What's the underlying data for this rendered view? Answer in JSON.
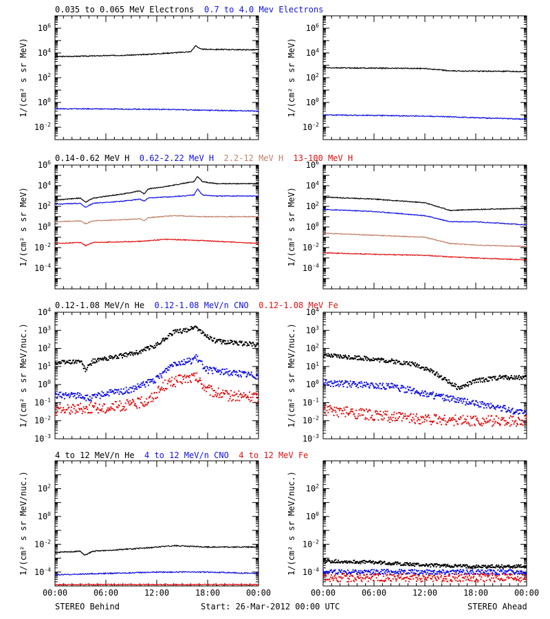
{
  "footer": {
    "left": "STEREO Behind",
    "center": "Start: 26-Mar-2012 00:00 UTC",
    "right": "STEREO Ahead"
  },
  "colors": {
    "black": "#000000",
    "blue": "#1010e0",
    "tan": "#c08068",
    "red": "#e01010"
  },
  "rows": [
    {
      "titles": [
        {
          "text": "0.035 to 0.065 MeV Electrons",
          "color": "black"
        },
        {
          "text": "0.7 to 4.0 Mev Electrons",
          "color": "blue"
        }
      ],
      "ylabel": "1/(cm² s sr MeV)",
      "ytick_exps": [
        -2,
        0,
        2,
        4,
        6
      ]
    },
    {
      "titles": [
        {
          "text": "0.14-0.62 MeV H",
          "color": "black"
        },
        {
          "text": "0.62-2.22 MeV H",
          "color": "blue"
        },
        {
          "text": "2.2-12 MeV H",
          "color": "tan"
        },
        {
          "text": "13-100 MeV H",
          "color": "red"
        }
      ],
      "ylabel": "1/(cm² s sr MeV)",
      "ytick_exps": [
        -4,
        -2,
        0,
        2,
        4,
        6
      ]
    },
    {
      "titles": [
        {
          "text": "0.12-1.08 MeV/n He",
          "color": "black"
        },
        {
          "text": "0.12-1.08 MeV/n CNO",
          "color": "blue"
        },
        {
          "text": "0.12-1.08 MeV Fe",
          "color": "red"
        }
      ],
      "ylabel": "1/(cm² s sr MeV/nuc.)",
      "ytick_exps": [
        -3,
        -2,
        -1,
        0,
        1,
        2,
        3,
        4
      ]
    },
    {
      "titles": [
        {
          "text": "4 to 12 MeV/n He",
          "color": "black"
        },
        {
          "text": "4 to 12 MeV/n CNO",
          "color": "blue"
        },
        {
          "text": "4 to 12 MeV Fe",
          "color": "red"
        }
      ],
      "ylabel": "1/(cm² s sr MeV/nuc.)",
      "ytick_exps": [
        -4,
        -2,
        0,
        2
      ]
    }
  ],
  "chart_data": [
    {
      "type": "line",
      "panel": "row1-behind",
      "x_ticks": [
        "00:00",
        "06:00",
        "12:00",
        "18:00",
        "00:00"
      ],
      "xlim": [
        0,
        24
      ],
      "yscale": "log",
      "ylim_exp": [
        -3,
        7
      ],
      "series": [
        {
          "color": "black",
          "points": [
            [
              0,
              3.7
            ],
            [
              4,
              3.75
            ],
            [
              10,
              3.85
            ],
            [
              16,
              4.1
            ],
            [
              16.6,
              4.6
            ],
            [
              17.2,
              4.3
            ],
            [
              24,
              4.25
            ]
          ]
        },
        {
          "color": "blue",
          "points": [
            [
              0,
              -0.5
            ],
            [
              12,
              -0.55
            ],
            [
              24,
              -0.7
            ]
          ]
        }
      ]
    },
    {
      "type": "line",
      "panel": "row1-ahead",
      "x_ticks": [
        "00:00",
        "06:00",
        "12:00",
        "18:00",
        "00:00"
      ],
      "xlim": [
        0,
        24
      ],
      "yscale": "log",
      "ylim_exp": [
        -3,
        7
      ],
      "series": [
        {
          "color": "black",
          "points": [
            [
              0,
              2.8
            ],
            [
              12,
              2.75
            ],
            [
              15,
              2.55
            ],
            [
              24,
              2.5
            ]
          ]
        },
        {
          "color": "blue",
          "points": [
            [
              0,
              -1.0
            ],
            [
              12,
              -1.1
            ],
            [
              24,
              -1.35
            ]
          ]
        }
      ]
    },
    {
      "type": "line",
      "panel": "row2-behind",
      "x_ticks": [
        "00:00",
        "06:00",
        "12:00",
        "18:00",
        "00:00"
      ],
      "xlim": [
        0,
        24
      ],
      "yscale": "log",
      "ylim_exp": [
        -6,
        6
      ],
      "series": [
        {
          "color": "black",
          "points": [
            [
              0,
              2.6
            ],
            [
              3,
              2.8
            ],
            [
              3.6,
              2.4
            ],
            [
              4.5,
              2.8
            ],
            [
              8,
              3.2
            ],
            [
              10,
              3.5
            ],
            [
              10.5,
              3.2
            ],
            [
              11,
              3.7
            ],
            [
              13,
              3.9
            ],
            [
              15,
              4.2
            ],
            [
              16.4,
              4.4
            ],
            [
              16.8,
              4.9
            ],
            [
              17.4,
              4.4
            ],
            [
              19,
              4.2
            ],
            [
              24,
              4.2
            ]
          ]
        },
        {
          "color": "blue",
          "points": [
            [
              0,
              2.2
            ],
            [
              3,
              2.3
            ],
            [
              3.6,
              1.9
            ],
            [
              4.5,
              2.3
            ],
            [
              8,
              2.5
            ],
            [
              10,
              2.7
            ],
            [
              10.5,
              2.5
            ],
            [
              11,
              2.8
            ],
            [
              13,
              2.9
            ],
            [
              15,
              3.0
            ],
            [
              16.4,
              3.1
            ],
            [
              16.8,
              3.7
            ],
            [
              17.4,
              3.1
            ],
            [
              19,
              3.0
            ],
            [
              24,
              3.0
            ]
          ]
        },
        {
          "color": "tan",
          "points": [
            [
              0,
              0.5
            ],
            [
              3,
              0.6
            ],
            [
              3.6,
              0.3
            ],
            [
              4.5,
              0.6
            ],
            [
              8,
              0.7
            ],
            [
              10,
              0.8
            ],
            [
              10.5,
              0.6
            ],
            [
              11,
              0.9
            ],
            [
              14,
              1.1
            ],
            [
              17,
              1.0
            ],
            [
              24,
              1.0
            ]
          ]
        },
        {
          "color": "red",
          "points": [
            [
              0,
              -1.6
            ],
            [
              3,
              -1.5
            ],
            [
              3.6,
              -1.8
            ],
            [
              4.5,
              -1.5
            ],
            [
              10,
              -1.4
            ],
            [
              13,
              -1.2
            ],
            [
              17,
              -1.3
            ],
            [
              24,
              -1.6
            ]
          ]
        }
      ]
    },
    {
      "type": "line",
      "panel": "row2-ahead",
      "x_ticks": [
        "00:00",
        "06:00",
        "12:00",
        "18:00",
        "00:00"
      ],
      "xlim": [
        0,
        24
      ],
      "yscale": "log",
      "ylim_exp": [
        -6,
        6
      ],
      "series": [
        {
          "color": "black",
          "points": [
            [
              0,
              2.9
            ],
            [
              6,
              2.7
            ],
            [
              12,
              2.35
            ],
            [
              15,
              1.6
            ],
            [
              18,
              1.7
            ],
            [
              24,
              1.8
            ]
          ]
        },
        {
          "color": "blue",
          "points": [
            [
              0,
              1.7
            ],
            [
              6,
              1.5
            ],
            [
              12,
              1.1
            ],
            [
              15,
              0.5
            ],
            [
              18,
              0.5
            ],
            [
              24,
              0.2
            ]
          ]
        },
        {
          "color": "tan",
          "points": [
            [
              0,
              -0.6
            ],
            [
              6,
              -0.8
            ],
            [
              12,
              -1.0
            ],
            [
              15,
              -1.6
            ],
            [
              18,
              -1.75
            ],
            [
              24,
              -1.9
            ]
          ]
        },
        {
          "color": "red",
          "points": [
            [
              0,
              -2.5
            ],
            [
              6,
              -2.65
            ],
            [
              12,
              -2.75
            ],
            [
              15,
              -2.9
            ],
            [
              24,
              -3.2
            ]
          ]
        }
      ]
    },
    {
      "type": "scatter",
      "panel": "row3-behind",
      "x_ticks": [
        "00:00",
        "06:00",
        "12:00",
        "18:00",
        "00:00"
      ],
      "xlim": [
        0,
        24
      ],
      "yscale": "log",
      "ylim_exp": [
        -3,
        4
      ],
      "series": [
        {
          "color": "black",
          "points": [
            [
              0,
              1.2
            ],
            [
              3,
              1.3
            ],
            [
              3.6,
              0.8
            ],
            [
              4.5,
              1.3
            ],
            [
              8,
              1.6
            ],
            [
              10,
              1.8
            ],
            [
              12,
              2.2
            ],
            [
              14,
              2.9
            ],
            [
              15.5,
              3.0
            ],
            [
              16.6,
              3.2
            ],
            [
              17.5,
              2.8
            ],
            [
              19,
              2.4
            ],
            [
              24,
              2.2
            ]
          ]
        },
        {
          "color": "blue",
          "points": [
            [
              0,
              -0.6
            ],
            [
              3,
              -0.6
            ],
            [
              4,
              -0.8
            ],
            [
              6,
              -0.5
            ],
            [
              9,
              -0.3
            ],
            [
              10.5,
              0.0
            ],
            [
              12,
              0.3
            ],
            [
              14,
              1.2
            ],
            [
              16,
              1.3
            ],
            [
              16.6,
              1.5
            ],
            [
              18,
              0.8
            ],
            [
              24,
              0.5
            ]
          ]
        },
        {
          "color": "red",
          "points": [
            [
              0,
              -1.4
            ],
            [
              3,
              -1.3
            ],
            [
              6,
              -1.3
            ],
            [
              9,
              -1.1
            ],
            [
              11,
              -0.9
            ],
            [
              13,
              0.0
            ],
            [
              15,
              0.3
            ],
            [
              16.6,
              0.4
            ],
            [
              18,
              -0.3
            ],
            [
              20,
              -0.6
            ],
            [
              24,
              -0.7
            ]
          ]
        }
      ]
    },
    {
      "type": "scatter",
      "panel": "row3-ahead",
      "x_ticks": [
        "00:00",
        "06:00",
        "12:00",
        "18:00",
        "00:00"
      ],
      "xlim": [
        0,
        24
      ],
      "yscale": "log",
      "ylim_exp": [
        -3,
        4
      ],
      "series": [
        {
          "color": "black",
          "points": [
            [
              0,
              1.6
            ],
            [
              4,
              1.5
            ],
            [
              8,
              1.3
            ],
            [
              11,
              1.1
            ],
            [
              13,
              0.7
            ],
            [
              15,
              0.1
            ],
            [
              16,
              -0.2
            ],
            [
              18,
              0.2
            ],
            [
              21,
              0.4
            ],
            [
              24,
              0.4
            ]
          ]
        },
        {
          "color": "blue",
          "points": [
            [
              0,
              0.1
            ],
            [
              4,
              0.0
            ],
            [
              8,
              -0.1
            ],
            [
              11,
              -0.4
            ],
            [
              13,
              -0.6
            ],
            [
              16,
              -0.9
            ],
            [
              20,
              -1.2
            ],
            [
              24,
              -1.6
            ]
          ]
        },
        {
          "color": "red",
          "points": [
            [
              0,
              -1.4
            ],
            [
              4,
              -1.6
            ],
            [
              8,
              -1.8
            ],
            [
              12,
              -1.9
            ],
            [
              16,
              -2.0
            ],
            [
              24,
              -2.0
            ]
          ]
        }
      ]
    },
    {
      "type": "line",
      "panel": "row4-behind",
      "x_ticks": [
        "00:00",
        "06:00",
        "12:00",
        "18:00",
        "00:00"
      ],
      "xlim": [
        0,
        24
      ],
      "yscale": "log",
      "ylim_exp": [
        -5,
        4
      ],
      "series": [
        {
          "color": "black",
          "points": [
            [
              0,
              -2.6
            ],
            [
              3,
              -2.5
            ],
            [
              3.5,
              -2.8
            ],
            [
              4.5,
              -2.5
            ],
            [
              10,
              -2.3
            ],
            [
              14,
              -2.1
            ],
            [
              18,
              -2.2
            ],
            [
              24,
              -2.2
            ]
          ]
        },
        {
          "color": "blue",
          "points": [
            [
              0,
              -4.2
            ],
            [
              6,
              -4.1
            ],
            [
              12,
              -4.0
            ],
            [
              18,
              -4.0
            ],
            [
              24,
              -4.1
            ]
          ]
        },
        {
          "color": "red",
          "points": [
            [
              0,
              -4.9
            ],
            [
              24,
              -4.9
            ]
          ]
        }
      ]
    },
    {
      "type": "scatter",
      "panel": "row4-ahead",
      "x_ticks": [
        "00:00",
        "06:00",
        "12:00",
        "18:00",
        "00:00"
      ],
      "xlim": [
        0,
        24
      ],
      "yscale": "log",
      "ylim_exp": [
        -5,
        4
      ],
      "series": [
        {
          "color": "black",
          "points": [
            [
              0,
              -3.2
            ],
            [
              6,
              -3.3
            ],
            [
              12,
              -3.5
            ],
            [
              18,
              -3.6
            ],
            [
              24,
              -3.6
            ]
          ]
        },
        {
          "color": "blue",
          "points": [
            [
              0,
              -4.0
            ],
            [
              24,
              -4.0
            ]
          ]
        },
        {
          "color": "red",
          "points": [
            [
              0,
              -4.4
            ],
            [
              24,
              -4.4
            ]
          ]
        }
      ]
    }
  ]
}
